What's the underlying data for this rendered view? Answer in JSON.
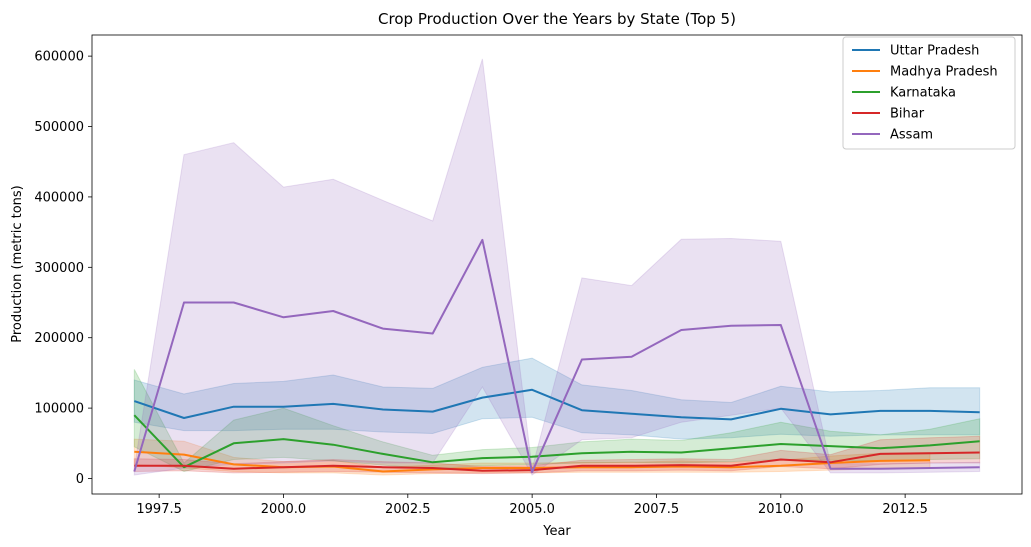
{
  "chart_data": {
    "type": "line",
    "title": "Crop Production Over the Years by State (Top 5)",
    "xlabel": "Year",
    "ylabel": "Production (metric tons)",
    "xlim": [
      1996.15,
      2014.85
    ],
    "ylim": [
      -22000,
      630000
    ],
    "xticks": [
      1997.5,
      2000.0,
      2002.5,
      2005.0,
      2007.5,
      2010.0,
      2012.5
    ],
    "xtick_labels": [
      "1997.5",
      "2000.0",
      "2002.5",
      "2005.0",
      "2007.5",
      "2010.0",
      "2012.5"
    ],
    "yticks": [
      0,
      100000,
      200000,
      300000,
      400000,
      500000,
      600000
    ],
    "ytick_labels": [
      "0",
      "100000",
      "200000",
      "300000",
      "400000",
      "500000",
      "600000"
    ],
    "legend_position": "top-right",
    "series": [
      {
        "name": "Uttar Pradesh",
        "color": "#1f77b4",
        "x": [
          1997,
          1998,
          1999,
          2000,
          2001,
          2002,
          2003,
          2004,
          2005,
          2006,
          2007,
          2008,
          2009,
          2010,
          2011,
          2012,
          2013,
          2014
        ],
        "values": [
          110000,
          86000,
          102000,
          102000,
          106000,
          98000,
          95000,
          115000,
          126000,
          97000,
          92000,
          87000,
          84000,
          99000,
          91000,
          96000,
          96000,
          94000
        ],
        "lower": [
          80000,
          68000,
          68000,
          70000,
          70000,
          66000,
          64000,
          85000,
          87000,
          65000,
          62000,
          56000,
          58000,
          63000,
          60000,
          62000,
          62000,
          62000
        ],
        "upper": [
          140000,
          120000,
          135000,
          138000,
          147000,
          130000,
          128000,
          158000,
          171000,
          133000,
          125000,
          112000,
          108000,
          131000,
          123000,
          125000,
          129000,
          129000
        ]
      },
      {
        "name": "Madhya Pradesh",
        "color": "#ff7f0e",
        "x": [
          1997,
          1998,
          1999,
          2000,
          2001,
          2002,
          2003,
          2004,
          2005,
          2006,
          2007,
          2008,
          2009,
          2010,
          2011,
          2012,
          2013
        ],
        "values": [
          38000,
          34000,
          20000,
          16000,
          17000,
          10000,
          13000,
          15000,
          15000,
          16000,
          16000,
          17000,
          16000,
          18000,
          22000,
          25000,
          26000
        ],
        "lower": [
          20000,
          15000,
          10000,
          8000,
          8000,
          5000,
          7000,
          8000,
          8000,
          9000,
          9000,
          9000,
          9000,
          10000,
          12000,
          14000,
          15000
        ],
        "upper": [
          56000,
          53000,
          30000,
          24000,
          26000,
          16000,
          19000,
          22000,
          22000,
          23000,
          23000,
          25000,
          23000,
          26000,
          32000,
          36000,
          37000
        ]
      },
      {
        "name": "Karnataka",
        "color": "#2ca02c",
        "x": [
          1997,
          1998,
          1999,
          2000,
          2001,
          2002,
          2003,
          2004,
          2005,
          2006,
          2007,
          2008,
          2009,
          2010,
          2011,
          2012,
          2013,
          2014
        ],
        "values": [
          90000,
          16000,
          50000,
          56000,
          48000,
          35000,
          23000,
          29000,
          31000,
          36000,
          38000,
          37000,
          43000,
          49000,
          46000,
          43000,
          47000,
          53000
        ],
        "lower": [
          45000,
          10000,
          27000,
          30000,
          25000,
          19000,
          14000,
          18000,
          20000,
          22000,
          23000,
          22000,
          24000,
          27000,
          26000,
          25000,
          27000,
          28000
        ],
        "upper": [
          155000,
          22000,
          83000,
          100000,
          75000,
          52000,
          33000,
          41000,
          44000,
          52000,
          56000,
          54000,
          65000,
          80000,
          67000,
          62000,
          70000,
          85000
        ]
      },
      {
        "name": "Bihar",
        "color": "#d62728",
        "x": [
          1997,
          1998,
          1999,
          2000,
          2001,
          2002,
          2003,
          2004,
          2005,
          2006,
          2007,
          2008,
          2009,
          2010,
          2011,
          2012,
          2013,
          2014
        ],
        "values": [
          18000,
          18000,
          14000,
          16000,
          18000,
          16000,
          15000,
          11000,
          12000,
          18000,
          18000,
          19000,
          18000,
          27000,
          23000,
          35000,
          36000,
          37000
        ],
        "lower": [
          10000,
          11000,
          8000,
          9000,
          10000,
          9000,
          8000,
          7000,
          8000,
          11000,
          11000,
          12000,
          11000,
          17000,
          14000,
          20000,
          22000,
          22000
        ],
        "upper": [
          28000,
          27000,
          21000,
          24000,
          27000,
          24000,
          22000,
          17000,
          18000,
          26000,
          27000,
          28000,
          27000,
          40000,
          34000,
          55000,
          58000,
          60000
        ]
      },
      {
        "name": "Assam",
        "color": "#9467bd",
        "x": [
          1997,
          1998,
          1999,
          2000,
          2001,
          2002,
          2003,
          2004,
          2005,
          2006,
          2007,
          2008,
          2009,
          2010,
          2011,
          2012,
          2013,
          2014
        ],
        "values": [
          10000,
          250000,
          250000,
          229000,
          238000,
          213000,
          206000,
          339000,
          9000,
          169000,
          173000,
          211000,
          217000,
          218000,
          14000,
          14000,
          15000,
          16000
        ],
        "lower": [
          5000,
          15000,
          20000,
          22000,
          25000,
          22000,
          22000,
          130000,
          5000,
          55000,
          58000,
          80000,
          90000,
          100000,
          8000,
          8000,
          9000,
          10000
        ],
        "upper": [
          15000,
          460000,
          477000,
          414000,
          425000,
          395000,
          366000,
          596000,
          14000,
          285000,
          274000,
          340000,
          341000,
          337000,
          21000,
          21000,
          22000,
          23000
        ]
      }
    ]
  }
}
